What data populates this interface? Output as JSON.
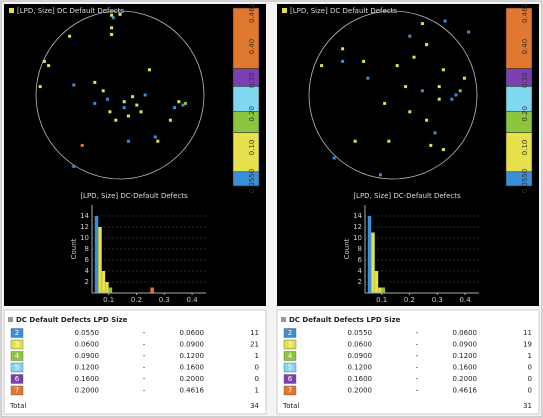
{
  "panels": [
    {
      "map_title": "[LPD, Size] DC Default Defects",
      "colorbar": {
        "colors": [
          "#3a8fd8",
          "#e6e04a",
          "#8cc63f",
          "#7fd8f0",
          "#7a3fb0",
          "#e07830"
        ],
        "labels": [
          "0.0550",
          "0.10",
          "0.20",
          "0.30",
          "0.40",
          "0.462"
        ]
      },
      "points": [
        {
          "color": "#3a8fd8",
          "x": [
            -0.55,
            -0.15,
            0.05,
            0.3,
            0.65,
            0.75,
            -0.55,
            0.1,
            -0.3,
            0.42,
            -0.08
          ],
          "y": [
            0.12,
            -0.05,
            -0.15,
            0.0,
            -0.15,
            -0.12,
            -0.85,
            -0.55,
            -0.1,
            -0.5,
            0.92
          ]
        },
        {
          "color": "#e6e04a",
          "x": [
            -0.1,
            -0.1,
            -0.1,
            0.0,
            -0.85,
            -0.9,
            -0.95,
            -0.12,
            -0.05,
            0.05,
            0.15,
            0.2,
            -0.2,
            0.1,
            0.25,
            0.7,
            0.45,
            0.6,
            -0.3,
            0.35,
            -0.6
          ],
          "y": [
            0.95,
            0.8,
            0.72,
            0.96,
            0.35,
            0.4,
            0.1,
            -0.2,
            -0.3,
            -0.08,
            -0.02,
            -0.12,
            0.05,
            -0.25,
            -0.2,
            -0.08,
            -0.55,
            -0.3,
            0.15,
            0.3,
            0.7
          ]
        },
        {
          "color": "#8cc63f",
          "x": [
            0.78
          ],
          "y": [
            -0.1
          ]
        },
        {
          "color": "#e07830",
          "x": [
            -0.45
          ],
          "y": [
            -0.6
          ]
        }
      ],
      "histogram": {
        "title": "[LPD, Size] DC-Default Defects",
        "ylabel": "Count",
        "bins": [
          0.05,
          0.0625,
          0.075,
          0.0875,
          0.1,
          0.1125,
          0.125,
          0.1375,
          0.15,
          0.1625,
          0.175,
          0.1875,
          0.2,
          0.2125,
          0.225,
          0.2375,
          0.25,
          0.2625
        ],
        "counts": [
          14,
          12,
          4,
          2,
          1,
          0,
          0,
          0,
          0,
          0,
          0,
          0,
          0,
          0,
          0,
          0,
          1
        ],
        "colors": [
          "#3a8fd8",
          "#e6e04a",
          "#e6e04a",
          "#e6e04a",
          "#8cc63f",
          "#e6e04a",
          "#e6e04a",
          "#e6e04a",
          "#e6e04a",
          "#e6e04a",
          "#e6e04a",
          "#e6e04a",
          "#e6e04a",
          "#e6e04a",
          "#e6e04a",
          "#e6e04a",
          "#e07830"
        ],
        "xlim": [
          0.04,
          0.45
        ],
        "xticks": [
          0.1,
          0.2,
          0.3,
          0.4
        ],
        "ylim": [
          0,
          16
        ],
        "yticks": [
          2,
          4,
          6,
          8,
          10,
          12,
          14
        ],
        "grid": true
      },
      "table": {
        "title": "DC Default Defects LPD Size",
        "rows": [
          [
            "2",
            "0.0550",
            "-",
            "0.0600",
            11
          ],
          [
            "3",
            "0.0600",
            "-",
            "0.0900",
            21
          ],
          [
            "4",
            "0.0900",
            "-",
            "0.1200",
            1
          ],
          [
            "5",
            "0.1200",
            "-",
            "0.1600",
            0
          ],
          [
            "6",
            "0.1600",
            "-",
            "0.2000",
            0
          ],
          [
            "7",
            "0.2000",
            "-",
            "0.4616",
            1
          ]
        ],
        "total": [
          "Total",
          34
        ]
      }
    },
    {
      "map_title": "[LPD, Size] DC Default Defects",
      "colorbar": {
        "colors": [
          "#3a8fd8",
          "#e6e04a",
          "#8cc63f",
          "#7fd8f0",
          "#7a3fb0",
          "#e07830"
        ],
        "labels": [
          "0.0550",
          "0.10",
          "0.20",
          "0.30",
          "0.40",
          "0.462"
        ]
      },
      "points": [
        {
          "color": "#3a8fd8",
          "x": [
            0.62,
            0.2,
            -0.3,
            0.35,
            0.75,
            0.7,
            -0.7,
            -0.15,
            0.5,
            0.9,
            -0.6
          ],
          "y": [
            0.88,
            0.7,
            0.2,
            0.05,
            0.0,
            -0.05,
            -0.75,
            -0.95,
            -0.45,
            0.75,
            0.4
          ]
        },
        {
          "color": "#e6e04a",
          "x": [
            0.35,
            0.4,
            -0.35,
            -0.6,
            -0.85,
            0.05,
            0.25,
            0.6,
            0.55,
            0.15,
            -0.1,
            0.2,
            0.4,
            0.45,
            0.6,
            -0.05,
            -0.45,
            0.55,
            0.85
          ],
          "y": [
            0.85,
            0.6,
            0.4,
            0.55,
            0.35,
            0.35,
            0.45,
            0.3,
            0.1,
            0.1,
            -0.1,
            -0.2,
            -0.3,
            -0.6,
            -0.65,
            -0.55,
            -0.55,
            -0.05,
            0.2
          ]
        },
        {
          "color": "#8cc63f",
          "x": [
            0.8
          ],
          "y": [
            0.05
          ]
        }
      ],
      "histogram": {
        "title": "[LPD, Size] DC-Default Defects",
        "ylabel": "Count",
        "bins": [
          0.05,
          0.0625,
          0.075,
          0.0875,
          0.1,
          0.1125
        ],
        "counts": [
          14,
          11,
          4,
          1,
          1
        ],
        "colors": [
          "#3a8fd8",
          "#e6e04a",
          "#e6e04a",
          "#e6e04a",
          "#8cc63f"
        ],
        "xlim": [
          0.04,
          0.45
        ],
        "xticks": [
          0.1,
          0.2,
          0.3,
          0.4
        ],
        "ylim": [
          0,
          16
        ],
        "yticks": [
          2,
          4,
          6,
          8,
          10,
          12,
          14
        ],
        "grid": true
      },
      "table": {
        "title": "DC Default Defects LPD Size",
        "rows": [
          [
            "2",
            "0.0550",
            "-",
            "0.0600",
            11
          ],
          [
            "3",
            "0.0600",
            "-",
            "0.0900",
            19
          ],
          [
            "4",
            "0.0900",
            "-",
            "0.1200",
            1
          ],
          [
            "5",
            "0.1200",
            "-",
            "0.1600",
            0
          ],
          [
            "6",
            "0.1600",
            "-",
            "0.2000",
            0
          ],
          [
            "7",
            "0.2000",
            "-",
            "0.4616",
            0
          ]
        ],
        "total": [
          "Total",
          31
        ]
      }
    }
  ]
}
